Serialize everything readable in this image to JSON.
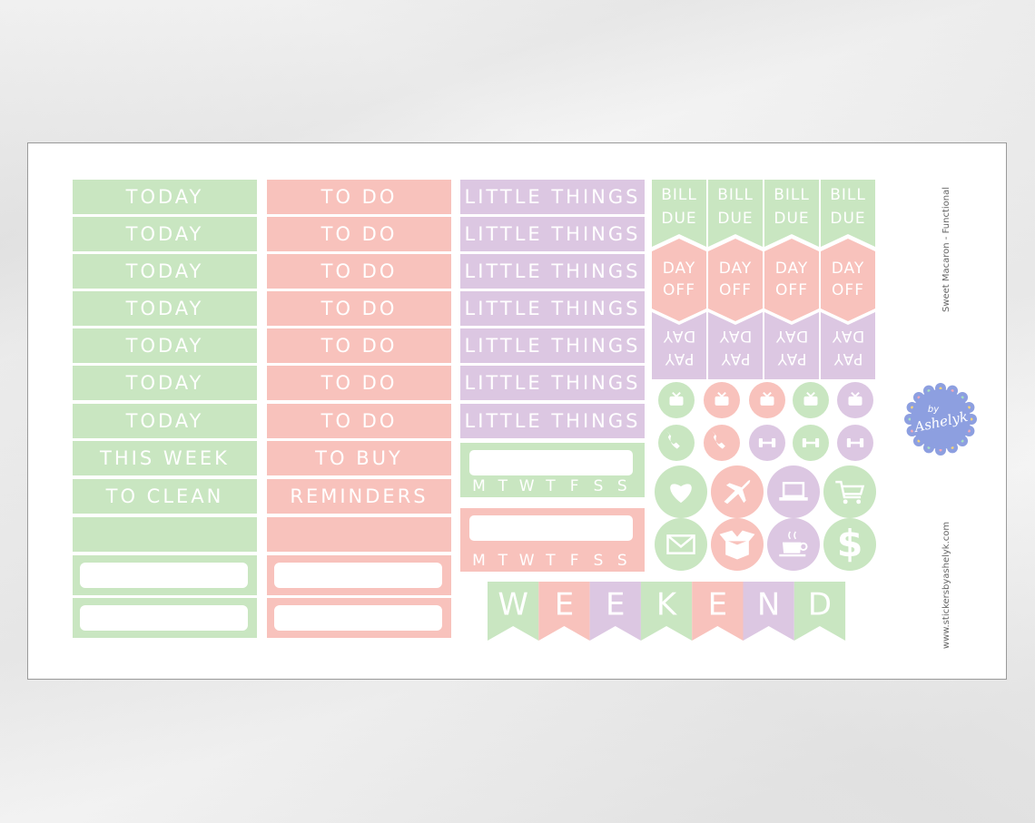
{
  "sheet": {
    "title": "Sweet Macaron - Functional",
    "website": "www.stickersbyashelyk.com",
    "logo": {
      "prefix": "by",
      "name": "Ashelyk"
    }
  },
  "columns": [
    {
      "labels": [
        "TODAY",
        "TODAY",
        "TODAY",
        "TODAY",
        "TODAY",
        "TODAY",
        "TODAY",
        "THIS WEEK",
        "TO CLEAN"
      ]
    },
    {
      "labels": [
        "TO DO",
        "TO DO",
        "TO DO",
        "TO DO",
        "TO DO",
        "TO DO",
        "TO DO",
        "TO BUY",
        "REMINDERS"
      ]
    },
    {
      "labels": [
        "LITTLE THINGS",
        "LITTLE THINGS",
        "LITTLE THINGS",
        "LITTLE THINGS",
        "LITTLE THINGS",
        "LITTLE THINGS",
        "LITTLE THINGS"
      ]
    }
  ],
  "weekdays": [
    "M",
    "T",
    "W",
    "T",
    "F",
    "S",
    "S"
  ],
  "flags": {
    "bill_due": [
      "BILL",
      "DUE"
    ],
    "day_off": [
      "DAY",
      "OFF"
    ],
    "pay_day": [
      "PAY",
      "DAY"
    ]
  },
  "dollar": "$",
  "banner": [
    "W",
    "E",
    "E",
    "K",
    "E",
    "N",
    "D"
  ]
}
